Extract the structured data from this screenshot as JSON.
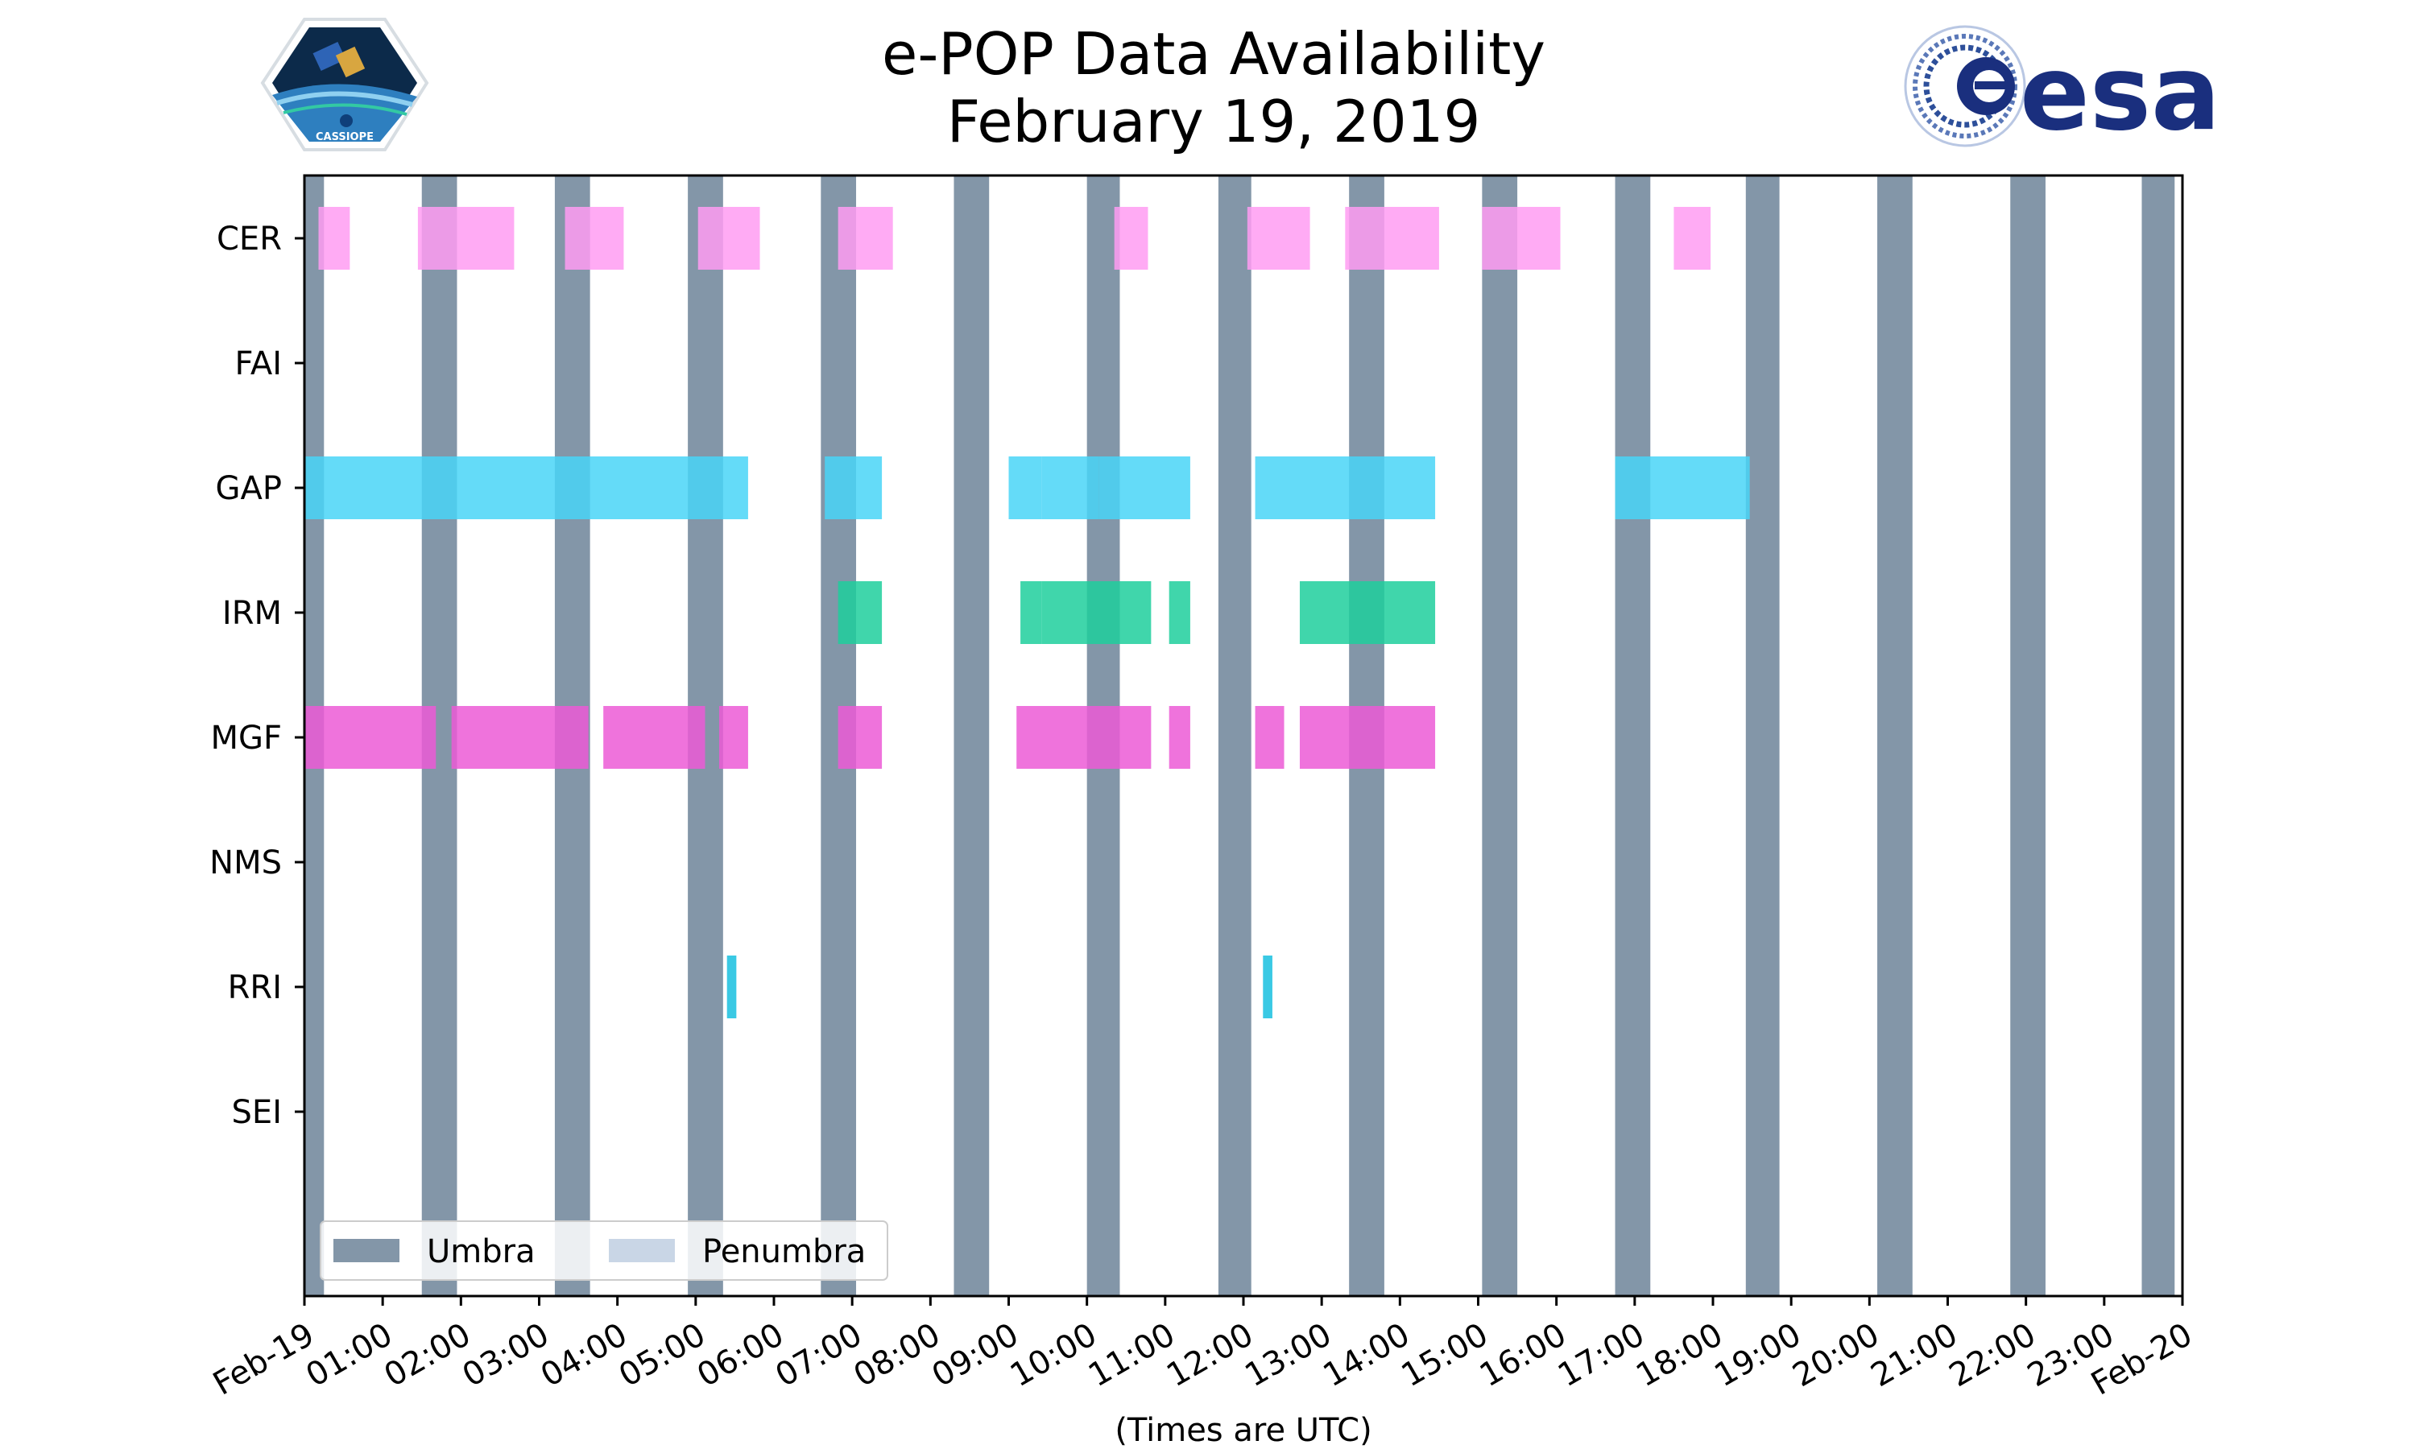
{
  "colors": {
    "umbra": "#8396a8",
    "penumbra": "#c9d6e6",
    "CER": "#ff9cf2",
    "FAI": "#ffd27a",
    "GAP": "#49d5f7",
    "IRM": "#1ecf9c",
    "MGF": "#ec5ad6",
    "NMS": "#9b8cf0",
    "RRI": "#18bfdf",
    "SEI": "#f39d5a"
  },
  "logos": {
    "left_logo_text": "CASSIOPE",
    "right_logo_text": "esa"
  },
  "chart_data": {
    "type": "timeline",
    "title": "e-POP Data Availability",
    "subtitle": "February 19, 2019",
    "xlabel": "(Times are UTC)",
    "xlim": [
      0,
      24
    ],
    "x_unit": "hours UTC",
    "xtick_values": [
      0,
      1,
      2,
      3,
      4,
      5,
      6,
      7,
      8,
      9,
      10,
      11,
      12,
      13,
      14,
      15,
      16,
      17,
      18,
      19,
      20,
      21,
      22,
      23,
      24
    ],
    "xtick_labels": [
      "Feb-19",
      "01:00",
      "02:00",
      "03:00",
      "04:00",
      "05:00",
      "06:00",
      "07:00",
      "08:00",
      "09:00",
      "10:00",
      "11:00",
      "12:00",
      "13:00",
      "14:00",
      "15:00",
      "16:00",
      "17:00",
      "18:00",
      "19:00",
      "20:00",
      "21:00",
      "22:00",
      "23:00",
      "Feb-20"
    ],
    "instruments": [
      "CER",
      "FAI",
      "GAP",
      "IRM",
      "MGF",
      "NMS",
      "RRI",
      "SEI"
    ],
    "umbra": [
      [
        0,
        0.25
      ],
      [
        1.5,
        1.95
      ],
      [
        3.2,
        3.65
      ],
      [
        4.9,
        5.35
      ],
      [
        6.6,
        7.05
      ],
      [
        8.3,
        8.75
      ],
      [
        10.0,
        10.42
      ],
      [
        11.68,
        12.1
      ],
      [
        13.35,
        13.8
      ],
      [
        15.05,
        15.5
      ],
      [
        16.75,
        17.2
      ],
      [
        18.42,
        18.85
      ],
      [
        20.1,
        20.55
      ],
      [
        21.8,
        22.25
      ],
      [
        23.48,
        23.9
      ]
    ],
    "penumbra": [],
    "legend": {
      "location": "lower-left",
      "entries": [
        "Umbra",
        "Penumbra"
      ]
    },
    "series": [
      {
        "name": "CER",
        "intervals": [
          [
            0.18,
            0.58
          ],
          [
            1.45,
            2.68
          ],
          [
            3.33,
            4.08
          ],
          [
            5.03,
            5.82
          ],
          [
            6.82,
            7.52
          ],
          [
            10.35,
            10.78
          ],
          [
            12.05,
            12.85
          ],
          [
            13.3,
            14.5
          ],
          [
            15.05,
            16.05
          ],
          [
            17.5,
            17.97
          ]
        ]
      },
      {
        "name": "FAI",
        "intervals": []
      },
      {
        "name": "GAP",
        "intervals": [
          [
            0.0,
            5.67
          ],
          [
            6.65,
            7.38
          ],
          [
            9.0,
            9.42
          ],
          [
            9.42,
            10.15
          ],
          [
            10.15,
            11.32
          ],
          [
            12.15,
            14.45
          ],
          [
            16.75,
            18.47
          ]
        ]
      },
      {
        "name": "IRM",
        "intervals": [
          [
            6.82,
            7.38
          ],
          [
            9.15,
            9.42
          ],
          [
            9.42,
            10.82
          ],
          [
            11.05,
            11.32
          ],
          [
            12.72,
            14.45
          ]
        ]
      },
      {
        "name": "MGF",
        "intervals": [
          [
            0.0,
            1.68
          ],
          [
            1.88,
            3.63
          ],
          [
            3.82,
            5.12
          ],
          [
            5.3,
            5.67
          ],
          [
            6.82,
            7.38
          ],
          [
            9.1,
            10.82
          ],
          [
            11.05,
            11.32
          ],
          [
            12.15,
            12.52
          ],
          [
            12.72,
            14.45
          ]
        ]
      },
      {
        "name": "NMS",
        "intervals": []
      },
      {
        "name": "RRI",
        "intervals": [
          [
            5.4,
            5.52
          ],
          [
            12.25,
            12.37
          ]
        ]
      },
      {
        "name": "SEI",
        "intervals": []
      }
    ]
  }
}
